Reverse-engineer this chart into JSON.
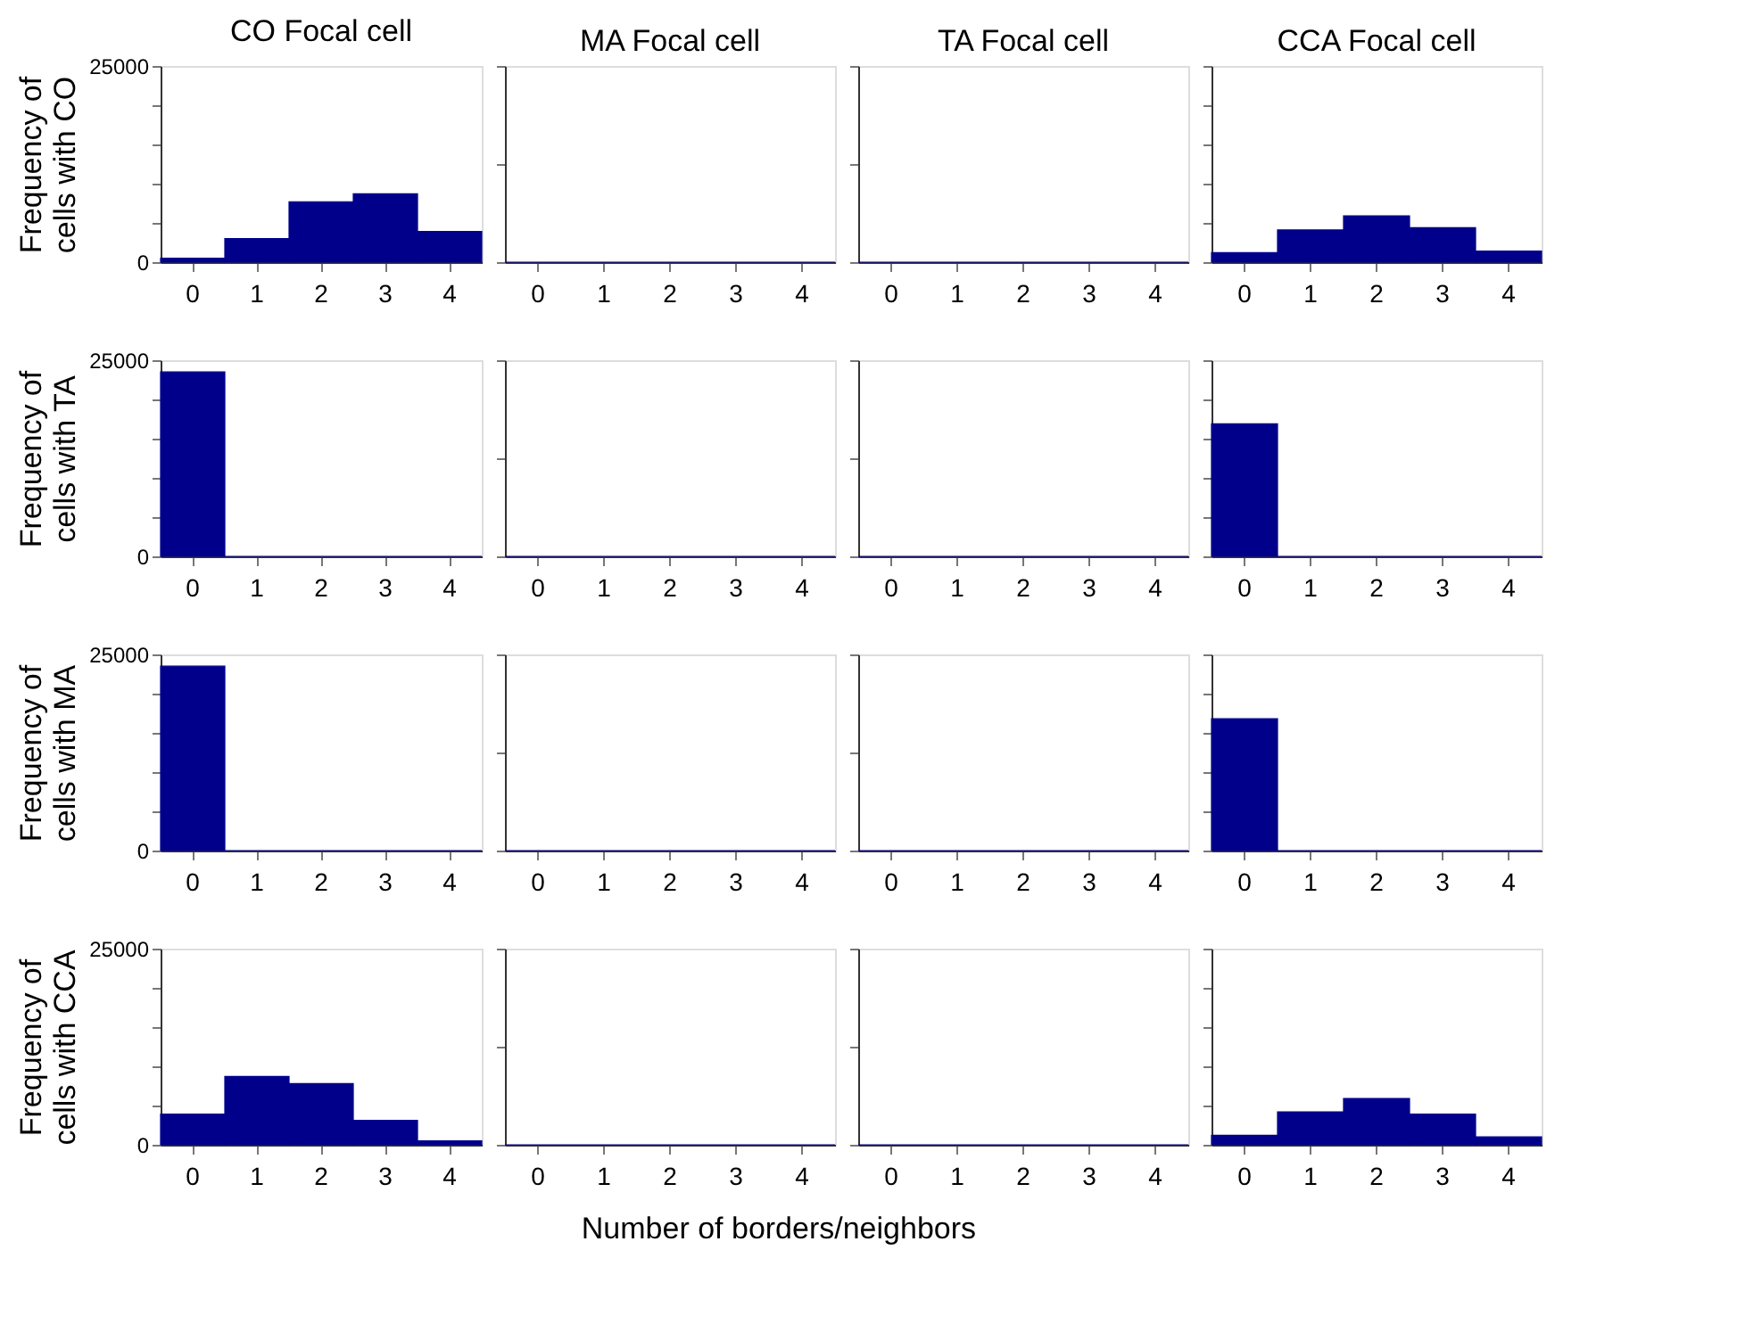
{
  "chart_data": [
    {
      "type": "bar",
      "title": "CO Focal cell",
      "ylabel": "Frequency of cells with CO",
      "categories": [
        "0",
        "1",
        "2",
        "3",
        "4"
      ],
      "values": [
        500,
        3000,
        7700,
        8700,
        3900
      ],
      "color": "#00008b",
      "ylim": [
        0,
        25000
      ],
      "yticks": [
        0,
        {
          "value": 5000,
          "label": null
        },
        {
          "value": 10000,
          "label": null
        },
        {
          "value": 15000,
          "label": null
        },
        {
          "value": 20000,
          "label": null
        },
        25000
      ],
      "grid": false
    },
    {
      "type": "bar",
      "title": "MA Focal cell",
      "categories": [
        "0",
        "1",
        "2",
        "3",
        "4"
      ],
      "values": [
        0,
        0,
        0,
        0,
        0
      ],
      "color": "#00008b",
      "ylim": [
        0,
        25000
      ],
      "yticks": [
        0,
        {
          "value": 12500,
          "label": null
        },
        25000
      ],
      "tick_labels": "x",
      "grid": false
    },
    {
      "type": "bar",
      "title": "TA Focal cell",
      "categories": [
        "0",
        "1",
        "2",
        "3",
        "4"
      ],
      "values": [
        0,
        0,
        0,
        0,
        0
      ],
      "color": "#00008b",
      "ylim": [
        0,
        25000
      ],
      "yticks": [
        0,
        {
          "value": 12500,
          "label": null
        },
        25000
      ],
      "tick_labels": "x",
      "grid": false
    },
    {
      "type": "bar",
      "title": "CCA Focal cell",
      "categories": [
        "0",
        "1",
        "2",
        "3",
        "4"
      ],
      "values": [
        1200,
        4100,
        5900,
        4400,
        1400
      ],
      "color": "#00008b",
      "ylim": [
        0,
        25000
      ],
      "yticks": [
        0,
        {
          "value": 5000,
          "label": null
        },
        {
          "value": 10000,
          "label": null
        },
        {
          "value": 15000,
          "label": null
        },
        {
          "value": 20000,
          "label": null
        },
        25000
      ],
      "tick_labels": "x",
      "grid": false
    },
    {
      "type": "bar",
      "ylabel": "Frequency of cells with TA",
      "categories": [
        "0",
        "1",
        "2",
        "3",
        "4"
      ],
      "values": [
        23500,
        0,
        0,
        0,
        0
      ],
      "color": "#00008b",
      "ylim": [
        0,
        25000
      ],
      "yticks": [
        0,
        {
          "value": 5000,
          "label": null
        },
        {
          "value": 10000,
          "label": null
        },
        {
          "value": 15000,
          "label": null
        },
        {
          "value": 20000,
          "label": null
        },
        25000
      ],
      "grid": false
    },
    {
      "type": "bar",
      "categories": [
        "0",
        "1",
        "2",
        "3",
        "4"
      ],
      "values": [
        0,
        0,
        0,
        0,
        0
      ],
      "color": "#00008b",
      "ylim": [
        0,
        25000
      ],
      "yticks": [
        0,
        {
          "value": 12500,
          "label": null
        },
        25000
      ],
      "tick_labels": "x",
      "grid": false
    },
    {
      "type": "bar",
      "categories": [
        "0",
        "1",
        "2",
        "3",
        "4"
      ],
      "values": [
        0,
        0,
        0,
        0,
        0
      ],
      "color": "#00008b",
      "ylim": [
        0,
        25000
      ],
      "yticks": [
        0,
        {
          "value": 12500,
          "label": null
        },
        25000
      ],
      "tick_labels": "x",
      "grid": false
    },
    {
      "type": "bar",
      "categories": [
        "0",
        "1",
        "2",
        "3",
        "4"
      ],
      "values": [
        16900,
        0,
        0,
        0,
        0
      ],
      "color": "#00008b",
      "ylim": [
        0,
        25000
      ],
      "yticks": [
        0,
        {
          "value": 5000,
          "label": null
        },
        {
          "value": 10000,
          "label": null
        },
        {
          "value": 15000,
          "label": null
        },
        {
          "value": 20000,
          "label": null
        },
        25000
      ],
      "tick_labels": "x",
      "grid": false
    },
    {
      "type": "bar",
      "ylabel": "Frequency of cells with MA",
      "categories": [
        "0",
        "1",
        "2",
        "3",
        "4"
      ],
      "values": [
        23500,
        0,
        0,
        0,
        0
      ],
      "color": "#00008b",
      "ylim": [
        0,
        25000
      ],
      "yticks": [
        0,
        {
          "value": 5000,
          "label": null
        },
        {
          "value": 10000,
          "label": null
        },
        {
          "value": 15000,
          "label": null
        },
        {
          "value": 20000,
          "label": null
        },
        25000
      ],
      "grid": false
    },
    {
      "type": "bar",
      "categories": [
        "0",
        "1",
        "2",
        "3",
        "4"
      ],
      "values": [
        0,
        0,
        0,
        0,
        0
      ],
      "color": "#00008b",
      "ylim": [
        0,
        25000
      ],
      "yticks": [
        0,
        {
          "value": 12500,
          "label": null
        },
        25000
      ],
      "tick_labels": "x",
      "grid": false
    },
    {
      "type": "bar",
      "categories": [
        "0",
        "1",
        "2",
        "3",
        "4"
      ],
      "values": [
        0,
        0,
        0,
        0,
        0
      ],
      "color": "#00008b",
      "ylim": [
        0,
        25000
      ],
      "yticks": [
        0,
        {
          "value": 12500,
          "label": null
        },
        25000
      ],
      "tick_labels": "x",
      "grid": false
    },
    {
      "type": "bar",
      "categories": [
        "0",
        "1",
        "2",
        "3",
        "4"
      ],
      "values": [
        16800,
        0,
        0,
        0,
        0
      ],
      "color": "#00008b",
      "ylim": [
        0,
        25000
      ],
      "yticks": [
        0,
        {
          "value": 5000,
          "label": null
        },
        {
          "value": 10000,
          "label": null
        },
        {
          "value": 15000,
          "label": null
        },
        {
          "value": 20000,
          "label": null
        },
        25000
      ],
      "tick_labels": "x",
      "grid": false
    },
    {
      "type": "bar",
      "ylabel": "Frequency of cells with CCA",
      "categories": [
        "0",
        "1",
        "2",
        "3",
        "4"
      ],
      "values": [
        3900,
        8700,
        7800,
        3100,
        500
      ],
      "color": "#00008b",
      "ylim": [
        0,
        25000
      ],
      "yticks": [
        0,
        {
          "value": 5000,
          "label": null
        },
        {
          "value": 10000,
          "label": null
        },
        {
          "value": 15000,
          "label": null
        },
        {
          "value": 20000,
          "label": null
        },
        25000
      ],
      "grid": false
    },
    {
      "type": "bar",
      "xlabel": "Number of borders/neighbors",
      "categories": [
        "0",
        "1",
        "2",
        "3",
        "4"
      ],
      "values": [
        0,
        0,
        0,
        0,
        0
      ],
      "color": "#00008b",
      "ylim": [
        0,
        25000
      ],
      "yticks": [
        0,
        {
          "value": 12500,
          "label": null
        },
        25000
      ],
      "tick_labels": "x",
      "grid": false
    },
    {
      "type": "bar",
      "categories": [
        "0",
        "1",
        "2",
        "3",
        "4"
      ],
      "values": [
        0,
        0,
        0,
        0,
        0
      ],
      "color": "#00008b",
      "ylim": [
        0,
        25000
      ],
      "yticks": [
        0,
        {
          "value": 12500,
          "label": null
        },
        25000
      ],
      "tick_labels": "x",
      "grid": false
    },
    {
      "type": "bar",
      "categories": [
        "0",
        "1",
        "2",
        "3",
        "4"
      ],
      "values": [
        1200,
        4200,
        5900,
        3900,
        1000
      ],
      "color": "#00008b",
      "ylim": [
        0,
        25000
      ],
      "yticks": [
        0,
        {
          "value": 5000,
          "label": null
        },
        {
          "value": 10000,
          "label": null
        },
        {
          "value": 15000,
          "label": null
        },
        {
          "value": 20000,
          "label": null
        },
        25000
      ],
      "tick_labels": "x",
      "grid": false
    }
  ]
}
